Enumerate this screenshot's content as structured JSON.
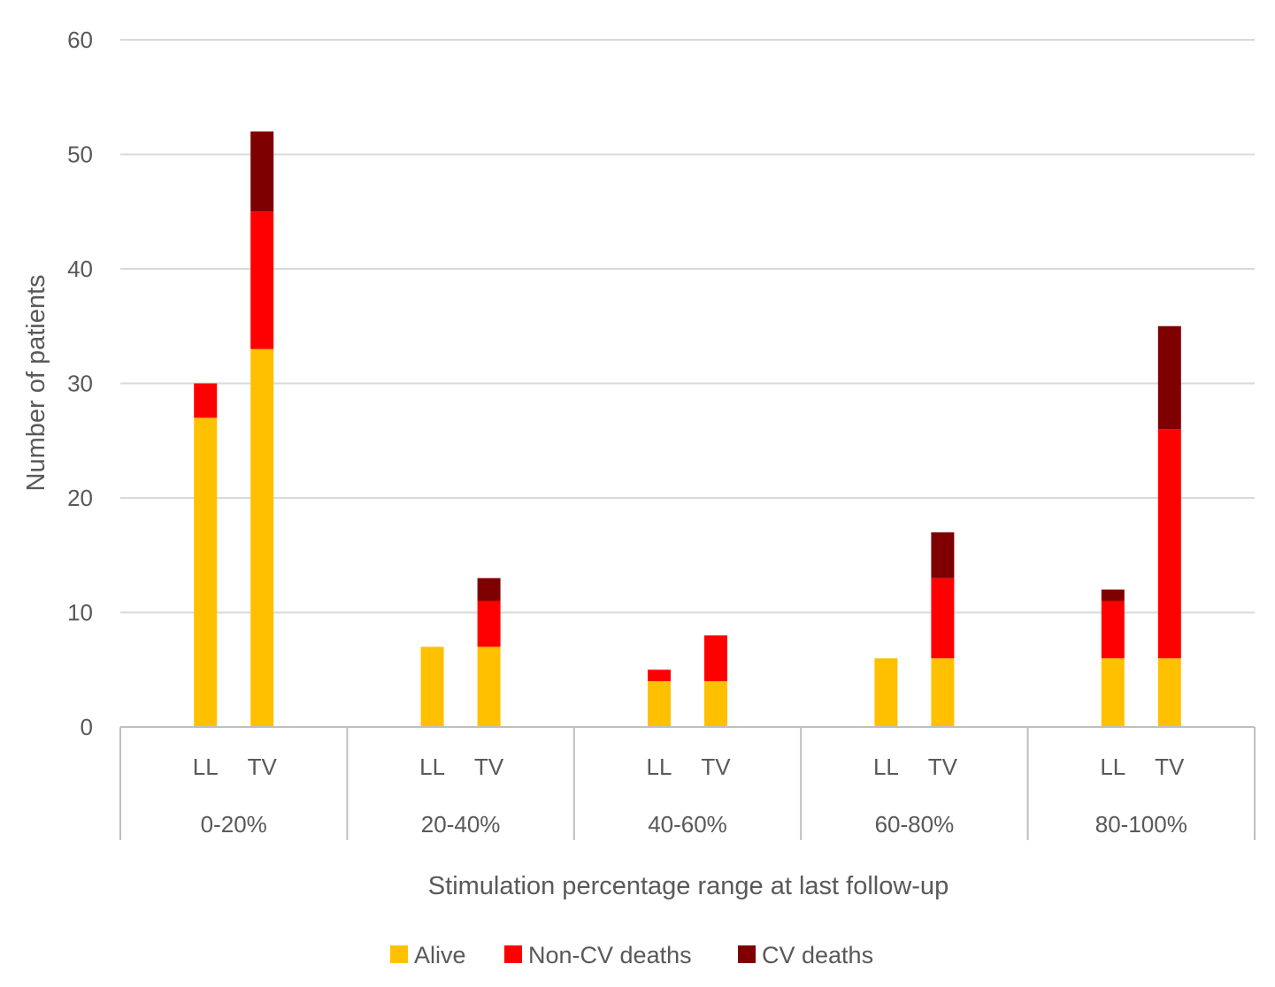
{
  "chart_data": {
    "type": "bar",
    "stacked": true,
    "title": "",
    "xlabel": "Stimulation percentage range at last follow-up",
    "ylabel": "Number of patients",
    "ylim": [
      0,
      60
    ],
    "yticks": [
      0,
      10,
      20,
      30,
      40,
      50,
      60
    ],
    "grid": true,
    "legend_position": "bottom",
    "groups": [
      "0-20%",
      "20-40%",
      "40-60%",
      "60-80%",
      "80-100%"
    ],
    "subcategories": [
      "LL",
      "TV"
    ],
    "categories": [
      "0-20% LL",
      "0-20% TV",
      "20-40% LL",
      "20-40% TV",
      "40-60% LL",
      "40-60% TV",
      "60-80% LL",
      "60-80% TV",
      "80-100% LL",
      "80-100% TV"
    ],
    "series": [
      {
        "name": "Alive",
        "color": "#FFC000",
        "values": [
          27,
          33,
          7,
          7,
          4,
          4,
          6,
          6,
          6,
          6
        ]
      },
      {
        "name": "Non-CV deaths",
        "color": "#FF0000",
        "values": [
          3,
          12,
          0,
          4,
          1,
          4,
          0,
          7,
          5,
          20
        ]
      },
      {
        "name": "CV deaths",
        "color": "#7F0000",
        "values": [
          0,
          7,
          0,
          2,
          0,
          0,
          0,
          4,
          1,
          9
        ]
      }
    ]
  },
  "colors": {
    "grid": "#d9d9d9",
    "axis": "#bfbfbf",
    "text": "#595959"
  }
}
